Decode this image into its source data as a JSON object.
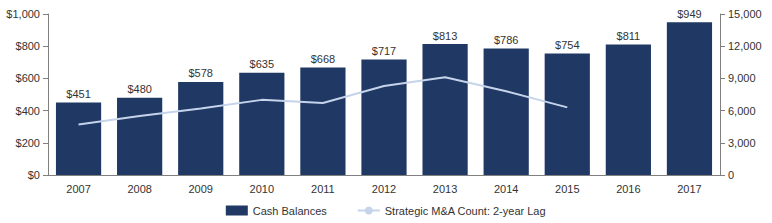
{
  "chart_data": {
    "type": "bar",
    "categories": [
      "2007",
      "2008",
      "2009",
      "2010",
      "2011",
      "2012",
      "2013",
      "2014",
      "2015",
      "2016",
      "2017"
    ],
    "ylim": [
      0,
      1000
    ],
    "yticks": [
      {
        "value": 0,
        "label": "$0"
      },
      {
        "value": 200,
        "label": "$200"
      },
      {
        "value": 400,
        "label": "$400"
      },
      {
        "value": 600,
        "label": "$600"
      },
      {
        "value": 800,
        "label": "$800"
      },
      {
        "value": 1000,
        "label": "$1,000"
      }
    ],
    "y2lim": [
      0,
      15000
    ],
    "y2ticks": [
      0,
      {
        "value": 3000,
        "label": "3,000"
      },
      {
        "value": 6000,
        "label": "6,000"
      },
      {
        "value": 9000,
        "label": "9,000"
      },
      {
        "value": 12000,
        "label": "12,000"
      },
      {
        "value": 15000,
        "label": "15,000"
      }
    ],
    "grid": false,
    "legend": "bottom",
    "series": [
      {
        "name": "Cash Balances",
        "type": "bar",
        "color": "#1f3864",
        "values": [
          451,
          480,
          578,
          635,
          668,
          717,
          813,
          786,
          754,
          811,
          949
        ],
        "value_labels": [
          "$451",
          "$480",
          "$578",
          "$635",
          "$668",
          "$717",
          "$813",
          "$786",
          "$754",
          "$811",
          "$949"
        ],
        "data_labels": true
      },
      {
        "name": "Strategic M&A Count: 2-year Lag",
        "type": "line",
        "axis": "y2",
        "color": "#c5d4ea",
        "values": [
          4700,
          5500,
          6200,
          7000,
          6700,
          8300,
          9100,
          7800,
          6300,
          null,
          null
        ]
      }
    ]
  }
}
